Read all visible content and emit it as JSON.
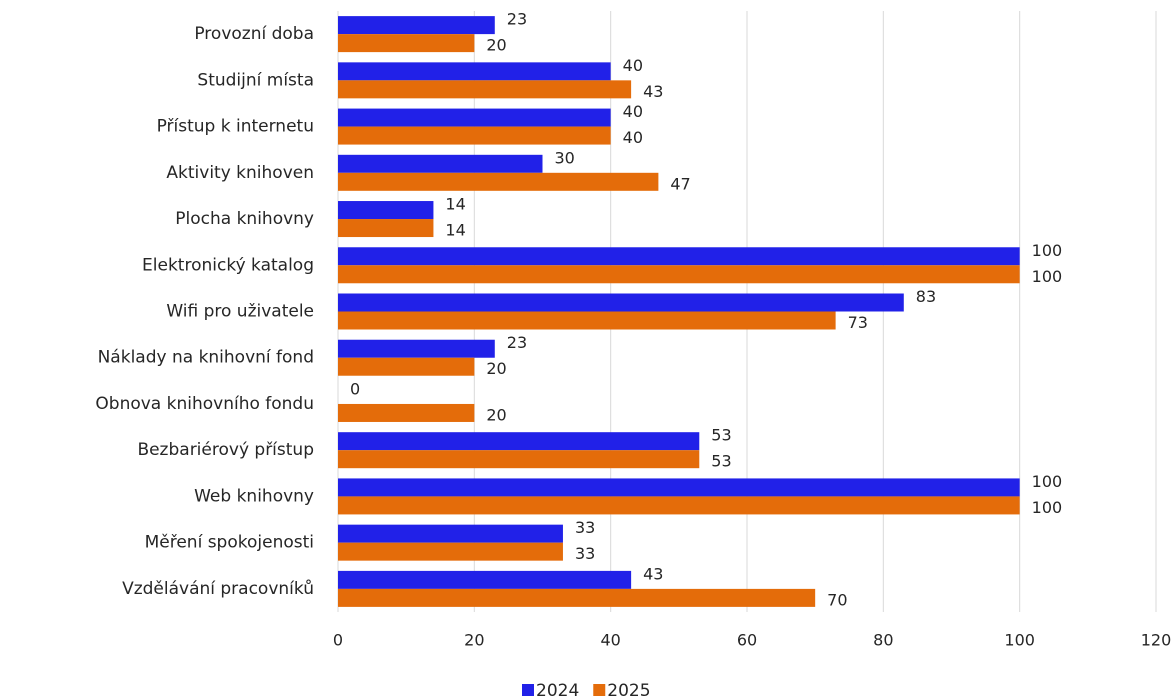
{
  "chart_data": {
    "type": "hbar",
    "categories": [
      "Provozní doba",
      "Studijní místa",
      "Přístup k internetu",
      "Aktivity knihoven",
      "Plocha knihovny",
      "Elektronický katalog",
      "Wifi pro uživatele",
      "Náklady na knihovní fond",
      "Obnova knihovního fondu",
      "Bezbariérový přístup",
      "Web knihovny",
      "Měření spokojenosti",
      "Vzdělávání pracovníků"
    ],
    "series": [
      {
        "name": "2024",
        "color": "#2121e8",
        "values": [
          23,
          40,
          40,
          30,
          14,
          100,
          83,
          23,
          0,
          53,
          100,
          33,
          43
        ]
      },
      {
        "name": "2025",
        "color": "#e46c0a",
        "values": [
          20,
          43,
          40,
          47,
          14,
          100,
          73,
          20,
          20,
          53,
          100,
          33,
          70
        ]
      }
    ],
    "xlim": [
      0,
      120
    ],
    "xticks": [
      0,
      20,
      40,
      60,
      80,
      100,
      120
    ],
    "grid": true,
    "legend": "bottom"
  }
}
